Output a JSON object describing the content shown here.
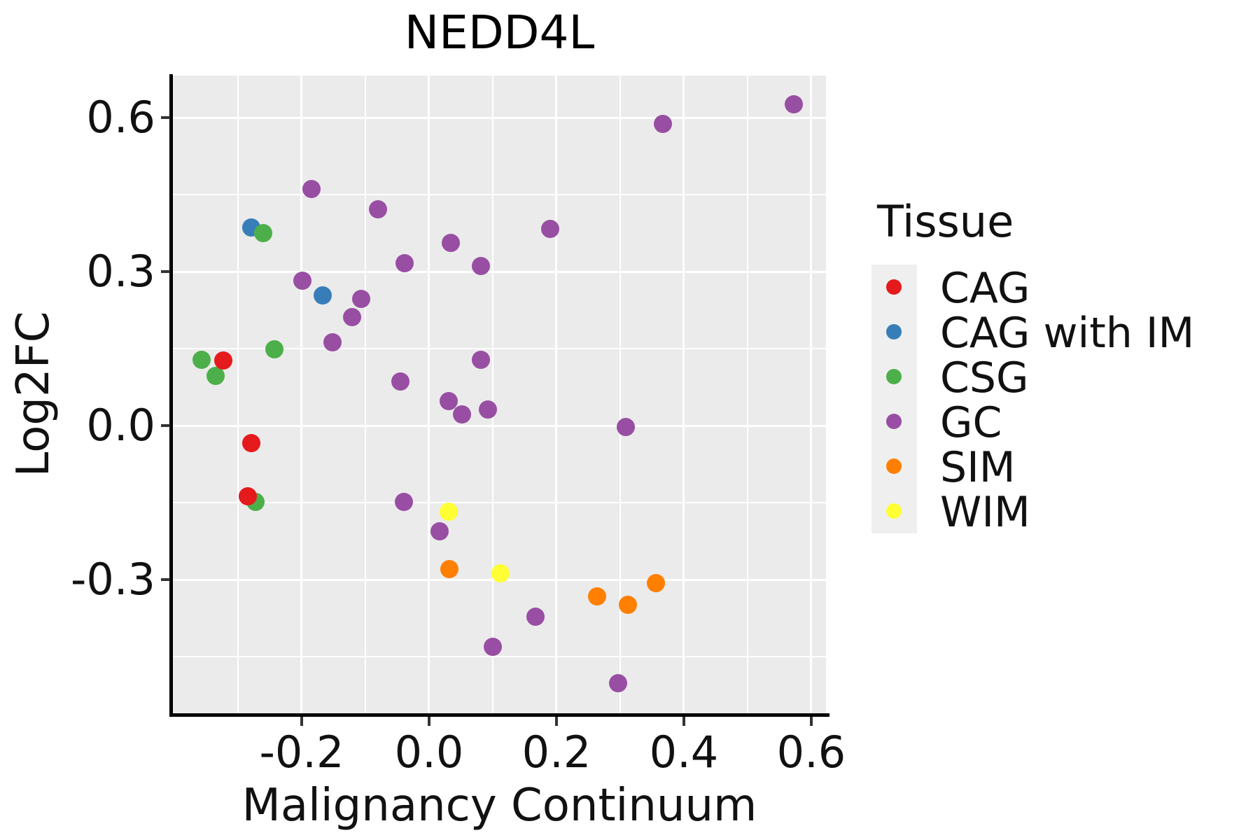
{
  "title": "NEDD4L",
  "x_axis": {
    "label": "Malignancy Continuum",
    "tick_values": [
      -0.2,
      0.0,
      0.2,
      0.4,
      0.6
    ],
    "tick_labels": [
      "-0.2",
      "0.0",
      "0.2",
      "0.4",
      "0.6"
    ],
    "minor_grid_values": [
      -0.3,
      -0.1,
      0.1,
      0.3,
      0.5
    ],
    "range": [
      -0.4022,
      0.6231
    ]
  },
  "y_axis": {
    "label": "Log2FC",
    "tick_values": [
      0.6,
      0.3,
      0.0,
      -0.3
    ],
    "tick_labels": [
      "0.6",
      "0.3",
      "0.0",
      "-0.3"
    ],
    "minor_grid_values": [
      0.45,
      0.15,
      -0.15,
      -0.45
    ],
    "range": [
      -0.563,
      0.682
    ]
  },
  "legend": {
    "title": "Tissue",
    "entries": [
      {
        "label": "CAG",
        "color": "#E41A1C"
      },
      {
        "label": "CAG with IM",
        "color": "#377EB8"
      },
      {
        "label": "CSG",
        "color": "#4DAF4A"
      },
      {
        "label": "GC",
        "color": "#984EA3"
      },
      {
        "label": "SIM",
        "color": "#FF7F00"
      },
      {
        "label": "WIM",
        "color": "#FFFF33"
      }
    ]
  },
  "style": {
    "panel_bg": "#EBEBEB",
    "grid_color": "#FFFFFF",
    "axis_color": "#000000",
    "legend_key_bg": "#EFEFEF"
  },
  "chart_data": {
    "type": "scatter",
    "title": "NEDD4L",
    "xlabel": "Malignancy Continuum",
    "ylabel": "Log2FC",
    "xlim": [
      -0.4022,
      0.6231
    ],
    "ylim": [
      -0.563,
      0.682
    ],
    "grid": true,
    "legend_position": "right",
    "series": [
      {
        "name": "GC",
        "color": "#984EA3",
        "z": 1,
        "points": [
          [
            0.573,
            0.626
          ],
          [
            0.367,
            0.588
          ],
          [
            -0.185,
            0.461
          ],
          [
            -0.08,
            0.422
          ],
          [
            0.19,
            0.383
          ],
          [
            0.034,
            0.356
          ],
          [
            -0.038,
            0.317
          ],
          [
            0.081,
            0.311
          ],
          [
            -0.199,
            0.282
          ],
          [
            -0.107,
            0.247
          ],
          [
            -0.121,
            0.211
          ],
          [
            -0.152,
            0.162
          ],
          [
            0.081,
            0.128
          ],
          [
            -0.045,
            0.086
          ],
          [
            0.031,
            0.048
          ],
          [
            0.052,
            0.022
          ],
          [
            0.092,
            0.031
          ],
          [
            0.309,
            -0.003
          ],
          [
            -0.04,
            -0.149
          ],
          [
            0.016,
            -0.206
          ],
          [
            0.167,
            -0.372
          ],
          [
            0.1,
            -0.431
          ],
          [
            0.297,
            -0.501
          ]
        ]
      },
      {
        "name": "CAG with IM",
        "color": "#377EB8",
        "z": 2,
        "points": [
          [
            -0.279,
            0.386
          ],
          [
            -0.167,
            0.254
          ]
        ]
      },
      {
        "name": "CSG",
        "color": "#4DAF4A",
        "z": 3,
        "points": [
          [
            -0.357,
            0.128
          ],
          [
            -0.335,
            0.097
          ],
          [
            -0.26,
            0.375
          ],
          [
            -0.243,
            0.149
          ],
          [
            -0.272,
            -0.148
          ]
        ]
      },
      {
        "name": "CAG",
        "color": "#E41A1C",
        "z": 4,
        "points": [
          [
            -0.323,
            0.127
          ],
          [
            -0.279,
            -0.034
          ],
          [
            -0.285,
            -0.138
          ]
        ]
      },
      {
        "name": "SIM",
        "color": "#FF7F00",
        "z": 5,
        "points": [
          [
            0.032,
            -0.28
          ],
          [
            0.264,
            -0.333
          ],
          [
            0.312,
            -0.349
          ],
          [
            0.356,
            -0.306
          ]
        ]
      },
      {
        "name": "WIM",
        "color": "#FFFF33",
        "z": 6,
        "points": [
          [
            0.031,
            -0.168
          ],
          [
            0.112,
            -0.287
          ]
        ]
      }
    ]
  }
}
